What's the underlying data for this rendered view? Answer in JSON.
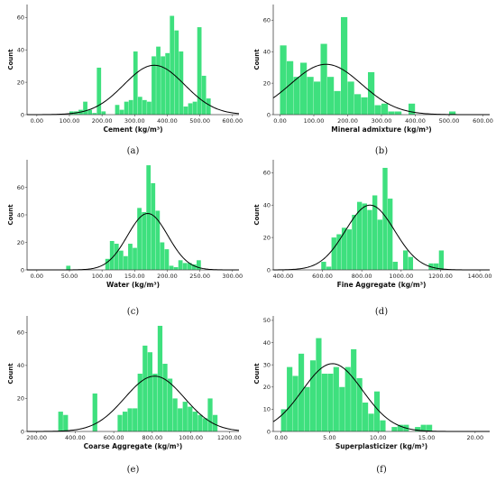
{
  "panel_style": {
    "bar_color": "#3ee07e",
    "bar_edge": "#2bbf63",
    "curve_color": "#000000",
    "axis_color": "#444444"
  },
  "chart_data": [
    {
      "type": "bar",
      "caption": "(a)",
      "xlabel": "Cement (kg/m³)",
      "ylabel": "Count",
      "xlim": [
        -30,
        620
      ],
      "ylim": [
        0,
        68
      ],
      "xticks": [
        "0.00",
        "100.00",
        "200.00",
        "300.00",
        "400.00",
        "500.00",
        "600.00"
      ],
      "xtick_values": [
        0,
        100,
        200,
        300,
        400,
        500,
        600
      ],
      "yticks": [
        "0",
        "20",
        "40",
        "60"
      ],
      "ytick_values": [
        0,
        20,
        40,
        60
      ],
      "bins": [
        [
          100,
          114,
          2
        ],
        [
          114,
          128,
          2
        ],
        [
          128,
          142,
          3
        ],
        [
          142,
          156,
          8
        ],
        [
          156,
          170,
          3
        ],
        [
          170,
          184,
          1
        ],
        [
          184,
          198,
          29
        ],
        [
          198,
          212,
          2
        ],
        [
          240,
          254,
          6
        ],
        [
          254,
          268,
          3
        ],
        [
          268,
          282,
          8
        ],
        [
          282,
          296,
          9
        ],
        [
          296,
          310,
          39
        ],
        [
          310,
          324,
          11
        ],
        [
          324,
          338,
          9
        ],
        [
          338,
          352,
          8
        ],
        [
          352,
          366,
          36
        ],
        [
          366,
          380,
          42
        ],
        [
          380,
          394,
          36
        ],
        [
          394,
          408,
          38
        ],
        [
          408,
          422,
          61
        ],
        [
          422,
          436,
          52
        ],
        [
          436,
          450,
          39
        ],
        [
          450,
          464,
          5
        ],
        [
          464,
          478,
          7
        ],
        [
          478,
          492,
          8
        ],
        [
          492,
          506,
          54
        ],
        [
          506,
          520,
          24
        ],
        [
          520,
          534,
          10
        ]
      ],
      "curve": {
        "mean": 360,
        "sd": 93,
        "peak": 30.5
      }
    },
    {
      "type": "bar",
      "caption": "(b)",
      "xlabel": "Mineral admixture (kg/m³)",
      "ylabel": "Count",
      "xlim": [
        -20,
        620
      ],
      "ylim": [
        0,
        70
      ],
      "xticks": [
        "0.00",
        "100.00",
        "200.00",
        "300.00",
        "400.00",
        "500.00",
        "600.00"
      ],
      "xtick_values": [
        0,
        100,
        200,
        300,
        400,
        500,
        600
      ],
      "yticks": [
        "0",
        "20",
        "40",
        "60"
      ],
      "ytick_values": [
        0,
        20,
        40,
        60
      ],
      "bins": [
        [
          0,
          20,
          44
        ],
        [
          20,
          40,
          34
        ],
        [
          40,
          60,
          24
        ],
        [
          60,
          80,
          33
        ],
        [
          80,
          100,
          24
        ],
        [
          100,
          120,
          21
        ],
        [
          120,
          140,
          45
        ],
        [
          140,
          160,
          24
        ],
        [
          160,
          180,
          15
        ],
        [
          180,
          200,
          62
        ],
        [
          200,
          220,
          21
        ],
        [
          220,
          240,
          13
        ],
        [
          240,
          260,
          11
        ],
        [
          260,
          280,
          27
        ],
        [
          280,
          300,
          6
        ],
        [
          300,
          320,
          7
        ],
        [
          320,
          340,
          2
        ],
        [
          340,
          360,
          2
        ],
        [
          380,
          400,
          7
        ],
        [
          500,
          520,
          2
        ]
      ],
      "curve": {
        "mean": 136,
        "sd": 105,
        "peak": 32
      }
    },
    {
      "type": "bar",
      "caption": "(c)",
      "xlabel": "Water (kg/m³)",
      "ylabel": "Count",
      "xlim": [
        -15,
        310
      ],
      "ylim": [
        0,
        80
      ],
      "xticks": [
        "0.00",
        "50.00",
        "100.00",
        "150.00",
        "200.00",
        "250.00",
        "300.00"
      ],
      "xtick_values": [
        0,
        50,
        100,
        150,
        200,
        250,
        300
      ],
      "yticks": [
        "0",
        "20",
        "40",
        "60"
      ],
      "ytick_values": [
        0,
        20,
        40,
        60
      ],
      "bins": [
        [
          45,
          52,
          3
        ],
        [
          105,
          112,
          8
        ],
        [
          112,
          119,
          21
        ],
        [
          119,
          126,
          19
        ],
        [
          126,
          133,
          14
        ],
        [
          133,
          140,
          10
        ],
        [
          140,
          147,
          19
        ],
        [
          147,
          154,
          16
        ],
        [
          154,
          161,
          45
        ],
        [
          161,
          168,
          42
        ],
        [
          168,
          175,
          76
        ],
        [
          175,
          182,
          63
        ],
        [
          182,
          189,
          43
        ],
        [
          189,
          196,
          20
        ],
        [
          196,
          203,
          15
        ],
        [
          203,
          210,
          3
        ],
        [
          210,
          217,
          2
        ],
        [
          217,
          224,
          7
        ],
        [
          224,
          231,
          5
        ],
        [
          231,
          238,
          5
        ],
        [
          238,
          245,
          4
        ],
        [
          245,
          252,
          7
        ]
      ],
      "curve": {
        "mean": 170,
        "sd": 31,
        "peak": 41
      }
    },
    {
      "type": "bar",
      "caption": "(d)",
      "xlabel": "Fine Aggregate (kg/m³)",
      "ylabel": "Count",
      "xlim": [
        350,
        1450
      ],
      "ylim": [
        0,
        68
      ],
      "xticks": [
        "400.00",
        "600.00",
        "800.00",
        "1000.00",
        "1200.00",
        "1400.00"
      ],
      "xtick_values": [
        400,
        600,
        800,
        1000,
        1200,
        1400
      ],
      "yticks": [
        "0",
        "20",
        "40",
        "60"
      ],
      "ytick_values": [
        0,
        20,
        40,
        60
      ],
      "bins": [
        [
          594,
          620,
          5
        ],
        [
          620,
          646,
          2
        ],
        [
          646,
          672,
          20
        ],
        [
          672,
          698,
          22
        ],
        [
          698,
          724,
          26
        ],
        [
          724,
          750,
          25
        ],
        [
          750,
          776,
          34
        ],
        [
          776,
          802,
          42
        ],
        [
          802,
          828,
          41
        ],
        [
          828,
          854,
          37
        ],
        [
          854,
          880,
          46
        ],
        [
          880,
          906,
          31
        ],
        [
          906,
          932,
          63
        ],
        [
          932,
          958,
          44
        ],
        [
          958,
          984,
          5
        ],
        [
          1010,
          1036,
          12
        ],
        [
          1036,
          1062,
          8
        ],
        [
          1140,
          1166,
          4
        ],
        [
          1166,
          1192,
          4
        ],
        [
          1192,
          1218,
          12
        ]
      ],
      "curve": {
        "mean": 842,
        "sd": 125,
        "peak": 40
      }
    },
    {
      "type": "bar",
      "caption": "(e)",
      "xlabel": "Coarse Aggregate (kg/m³)",
      "ylabel": "Count",
      "xlim": [
        150,
        1250
      ],
      "ylim": [
        0,
        70
      ],
      "xticks": [
        "200.00",
        "400.00",
        "600.00",
        "800.00",
        "1000.00",
        "1200.00"
      ],
      "xtick_values": [
        200,
        400,
        600,
        800,
        1000,
        1200
      ],
      "yticks": [
        "0",
        "20",
        "40",
        "60"
      ],
      "ytick_values": [
        0,
        20,
        40,
        60
      ],
      "bins": [
        [
          312,
          338,
          12
        ],
        [
          338,
          364,
          10
        ],
        [
          490,
          516,
          23
        ],
        [
          620,
          646,
          10
        ],
        [
          646,
          672,
          12
        ],
        [
          672,
          698,
          14
        ],
        [
          698,
          724,
          14
        ],
        [
          724,
          750,
          35
        ],
        [
          750,
          776,
          52
        ],
        [
          776,
          802,
          48
        ],
        [
          802,
          828,
          35
        ],
        [
          828,
          854,
          64
        ],
        [
          854,
          880,
          41
        ],
        [
          880,
          906,
          32
        ],
        [
          906,
          932,
          20
        ],
        [
          932,
          958,
          14
        ],
        [
          958,
          984,
          18
        ],
        [
          984,
          1010,
          15
        ],
        [
          1010,
          1036,
          12
        ],
        [
          1036,
          1062,
          10
        ],
        [
          1062,
          1088,
          8
        ],
        [
          1088,
          1114,
          20
        ],
        [
          1114,
          1140,
          10
        ]
      ],
      "curve": {
        "mean": 812,
        "sd": 155,
        "peak": 33.5
      }
    },
    {
      "type": "bar",
      "caption": "(f)",
      "xlabel": "Superplasticizer (kg/m³)",
      "ylabel": "Count",
      "xlim": [
        -0.8,
        21.5
      ],
      "ylim": [
        0,
        52
      ],
      "xticks": [
        "0.00",
        "5.00",
        "10.00",
        "15.00",
        "20.00"
      ],
      "xtick_values": [
        0,
        5,
        10,
        15,
        20
      ],
      "yticks": [
        "0",
        "10",
        "20",
        "30",
        "40",
        "50"
      ],
      "ytick_values": [
        0,
        10,
        20,
        30,
        40,
        50
      ],
      "bins": [
        [
          0,
          0.6,
          10
        ],
        [
          0.6,
          1.2,
          29
        ],
        [
          1.2,
          1.8,
          25
        ],
        [
          1.8,
          2.4,
          35
        ],
        [
          2.4,
          3.0,
          20
        ],
        [
          3.0,
          3.6,
          32
        ],
        [
          3.6,
          4.2,
          42
        ],
        [
          4.2,
          4.8,
          26
        ],
        [
          4.8,
          5.4,
          26
        ],
        [
          5.4,
          6.0,
          29
        ],
        [
          6.0,
          6.6,
          20
        ],
        [
          6.6,
          7.2,
          29
        ],
        [
          7.2,
          7.8,
          37
        ],
        [
          7.8,
          8.4,
          24
        ],
        [
          8.4,
          9.0,
          13
        ],
        [
          9.0,
          9.6,
          8
        ],
        [
          9.6,
          10.2,
          18
        ],
        [
          10.2,
          10.8,
          5
        ],
        [
          11.4,
          12.0,
          2
        ],
        [
          12.0,
          12.6,
          3
        ],
        [
          12.6,
          13.2,
          3
        ],
        [
          13.8,
          14.4,
          2
        ],
        [
          14.4,
          15.0,
          3
        ],
        [
          15.0,
          15.6,
          3
        ]
      ],
      "curve": {
        "mean": 5.3,
        "sd": 3.1,
        "peak": 30.5
      }
    }
  ]
}
